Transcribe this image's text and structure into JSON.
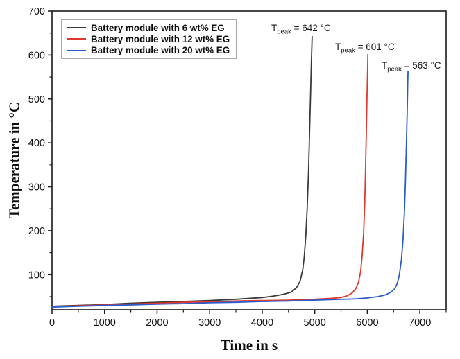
{
  "chart_data": {
    "type": "line",
    "title": "",
    "xlabel": "Time in s",
    "ylabel": "Temperature in °C",
    "xlim": [
      0,
      7500
    ],
    "ylim": [
      20,
      700
    ],
    "grid": false,
    "legend_position": "top-left",
    "frame_color": "#1a1a1a",
    "x_major_ticks": [
      0,
      1000,
      2000,
      3000,
      4000,
      5000,
      6000,
      7000
    ],
    "x_minor_ticks": [
      500,
      1500,
      2500,
      3500,
      4500,
      5500,
      6500,
      7500
    ],
    "y_major_ticks": [
      100,
      200,
      300,
      400,
      500,
      600,
      700
    ],
    "y_minor_ticks": [
      50,
      150,
      250,
      350,
      450,
      550,
      650
    ],
    "series": [
      {
        "id": "6wt-eg",
        "name": "Battery module with 6 wt% EG",
        "color": "#3a3a3a",
        "peak_temp_c": 642,
        "peak_time_s": 4950,
        "points": [
          [
            0,
            28
          ],
          [
            500,
            30
          ],
          [
            1000,
            32
          ],
          [
            1500,
            35
          ],
          [
            2000,
            37
          ],
          [
            2500,
            39
          ],
          [
            3000,
            41
          ],
          [
            3500,
            44
          ],
          [
            4000,
            48
          ],
          [
            4200,
            51
          ],
          [
            4400,
            55
          ],
          [
            4550,
            60
          ],
          [
            4650,
            70
          ],
          [
            4720,
            85
          ],
          [
            4770,
            110
          ],
          [
            4800,
            140
          ],
          [
            4830,
            190
          ],
          [
            4855,
            250
          ],
          [
            4880,
            330
          ],
          [
            4900,
            420
          ],
          [
            4920,
            510
          ],
          [
            4935,
            580
          ],
          [
            4950,
            642
          ]
        ]
      },
      {
        "id": "12wt-eg",
        "name": "Battery module with 12 wt% EG",
        "color": "#e0382f",
        "peak_temp_c": 601,
        "peak_time_s": 6010,
        "points": [
          [
            0,
            27
          ],
          [
            500,
            29
          ],
          [
            1000,
            31
          ],
          [
            1500,
            33
          ],
          [
            2000,
            35
          ],
          [
            2500,
            37
          ],
          [
            3000,
            38
          ],
          [
            3500,
            40
          ],
          [
            4000,
            41
          ],
          [
            4500,
            42
          ],
          [
            5000,
            44
          ],
          [
            5300,
            46
          ],
          [
            5500,
            48
          ],
          [
            5620,
            52
          ],
          [
            5710,
            58
          ],
          [
            5780,
            68
          ],
          [
            5830,
            82
          ],
          [
            5870,
            105
          ],
          [
            5900,
            140
          ],
          [
            5930,
            195
          ],
          [
            5950,
            260
          ],
          [
            5965,
            330
          ],
          [
            5980,
            420
          ],
          [
            5995,
            510
          ],
          [
            6005,
            565
          ],
          [
            6010,
            601
          ]
        ]
      },
      {
        "id": "20wt-eg",
        "name": "Battery module with 20 wt% EG",
        "color": "#2a5bcc",
        "peak_temp_c": 563,
        "peak_time_s": 6775,
        "points": [
          [
            0,
            26
          ],
          [
            500,
            28
          ],
          [
            1000,
            30
          ],
          [
            1500,
            31
          ],
          [
            2000,
            33
          ],
          [
            2500,
            34
          ],
          [
            3000,
            36
          ],
          [
            3500,
            37
          ],
          [
            4000,
            39
          ],
          [
            4500,
            40
          ],
          [
            5000,
            42
          ],
          [
            5500,
            44
          ],
          [
            5800,
            45
          ],
          [
            6000,
            47
          ],
          [
            6200,
            50
          ],
          [
            6350,
            54
          ],
          [
            6450,
            60
          ],
          [
            6520,
            68
          ],
          [
            6570,
            80
          ],
          [
            6610,
            100
          ],
          [
            6650,
            135
          ],
          [
            6680,
            180
          ],
          [
            6705,
            240
          ],
          [
            6725,
            310
          ],
          [
            6745,
            400
          ],
          [
            6760,
            480
          ],
          [
            6770,
            540
          ],
          [
            6775,
            563
          ]
        ]
      }
    ],
    "annotations": [
      {
        "base": "T",
        "sub": "peak",
        "rest": " = 642 °C"
      },
      {
        "base": "T",
        "sub": "peak",
        "rest": " = 601 °C"
      },
      {
        "base": "T",
        "sub": "peak",
        "rest": " = 563 °C"
      }
    ]
  }
}
